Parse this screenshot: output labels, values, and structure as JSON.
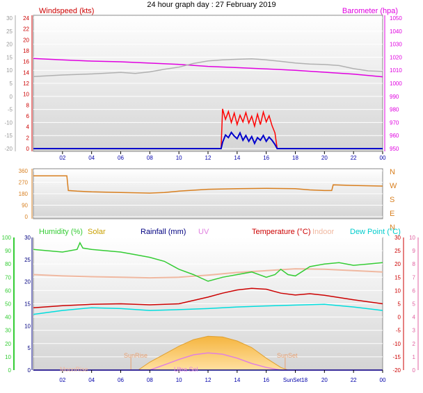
{
  "title": "24 hour graph day : 27 February 2019",
  "colors": {
    "wind": "#b0b0b0",
    "wind_speed": "#0000cc",
    "wind_gust": "#ff0000",
    "barometer": "#e000e0",
    "direction": "#d87f1f",
    "humidity": "#33cc33",
    "solar": "#c9a000",
    "rainfall": "#000080",
    "uv": "#e080e0",
    "temperature": "#cc0000",
    "indoor": "#f0b8a0",
    "dew_point": "#00dddd",
    "tick_x": "#0000aa"
  },
  "chart_data": [
    {
      "type": "line",
      "name": "wind-barometer",
      "labels": {
        "left": "Windspeed (kts)",
        "right": "Barometer (hpa)"
      },
      "x_ticks": [
        "02",
        "04",
        "06",
        "08",
        "10",
        "12",
        "14",
        "16",
        "18",
        "20",
        "22",
        "00"
      ],
      "left_outer_ticks": [
        30,
        25,
        20,
        15,
        10,
        5,
        0,
        -5,
        -10,
        -15,
        -20
      ],
      "left_inner_ticks": [
        24,
        22,
        20,
        18,
        16,
        14,
        12,
        10,
        8,
        6,
        4,
        2,
        0
      ],
      "right_ticks": [
        1050,
        1040,
        1030,
        1020,
        1010,
        1000,
        990,
        980,
        970,
        960,
        950
      ],
      "ylim_left": [
        0,
        25
      ],
      "ylim_right": [
        950,
        1050
      ],
      "series": [
        {
          "key": "barometer",
          "axis": "right",
          "points": [
            [
              0,
              1019
            ],
            [
              2,
              1018
            ],
            [
              4,
              1017
            ],
            [
              6,
              1016.5
            ],
            [
              8,
              1015.5
            ],
            [
              10,
              1014.5
            ],
            [
              12,
              1013
            ],
            [
              14,
              1012
            ],
            [
              16,
              1011
            ],
            [
              18,
              1010
            ],
            [
              20,
              1008.5
            ],
            [
              22,
              1007
            ],
            [
              24,
              1005
            ]
          ]
        },
        {
          "key": "wind",
          "axis": "left",
          "points": [
            [
              0,
              13.8
            ],
            [
              2,
              14.1
            ],
            [
              4,
              14.3
            ],
            [
              6,
              14.6
            ],
            [
              7,
              14.4
            ],
            [
              8,
              14.7
            ],
            [
              9,
              15.2
            ],
            [
              10,
              15.6
            ],
            [
              11,
              16.3
            ],
            [
              12,
              16.8
            ],
            [
              13,
              17.0
            ],
            [
              14,
              17.1
            ],
            [
              15,
              17.2
            ],
            [
              16,
              17.0
            ],
            [
              17,
              16.7
            ],
            [
              18,
              16.4
            ],
            [
              19,
              16.2
            ],
            [
              20,
              16.1
            ],
            [
              21,
              15.9
            ],
            [
              22,
              15.3
            ],
            [
              23,
              14.9
            ],
            [
              24,
              14.8
            ]
          ]
        },
        {
          "key": "wind_gust",
          "axis": "left",
          "points": [
            [
              0,
              0
            ],
            [
              12.9,
              0
            ],
            [
              13.0,
              7.6
            ],
            [
              13.2,
              5.6
            ],
            [
              13.4,
              7.1
            ],
            [
              13.6,
              5.0
            ],
            [
              13.8,
              6.8
            ],
            [
              14.0,
              4.6
            ],
            [
              14.2,
              6.4
            ],
            [
              14.4,
              5.1
            ],
            [
              14.6,
              6.9
            ],
            [
              14.8,
              4.9
            ],
            [
              15.0,
              6.2
            ],
            [
              15.2,
              4.3
            ],
            [
              15.4,
              6.6
            ],
            [
              15.6,
              4.6
            ],
            [
              15.8,
              7.0
            ],
            [
              16.0,
              5.1
            ],
            [
              16.2,
              6.3
            ],
            [
              16.4,
              4.4
            ],
            [
              16.6,
              3.0
            ],
            [
              16.75,
              0
            ],
            [
              24,
              0
            ]
          ]
        },
        {
          "key": "wind_speed",
          "axis": "left",
          "points": [
            [
              0,
              0
            ],
            [
              12.9,
              0
            ],
            [
              13.0,
              1.2
            ],
            [
              13.2,
              2.6
            ],
            [
              13.4,
              2.1
            ],
            [
              13.6,
              3.1
            ],
            [
              13.8,
              2.4
            ],
            [
              14.0,
              1.9
            ],
            [
              14.2,
              3.0
            ],
            [
              14.4,
              1.6
            ],
            [
              14.6,
              2.5
            ],
            [
              14.8,
              1.4
            ],
            [
              15.0,
              2.3
            ],
            [
              15.2,
              1.0
            ],
            [
              15.4,
              2.1
            ],
            [
              15.6,
              1.6
            ],
            [
              15.8,
              2.5
            ],
            [
              16.0,
              1.4
            ],
            [
              16.2,
              2.2
            ],
            [
              16.4,
              1.6
            ],
            [
              16.6,
              0.8
            ],
            [
              16.75,
              0
            ],
            [
              24,
              0
            ]
          ]
        }
      ]
    },
    {
      "type": "line",
      "name": "wind-direction",
      "y_ticks": [
        360,
        270,
        180,
        90,
        0
      ],
      "compass": [
        "N",
        "W",
        "S",
        "E",
        "N"
      ],
      "ylim": [
        0,
        360
      ],
      "series": [
        {
          "key": "direction",
          "points": [
            [
              0,
              320
            ],
            [
              2.3,
              320
            ],
            [
              2.4,
              205
            ],
            [
              3,
              200
            ],
            [
              4,
              195
            ],
            [
              6,
              190
            ],
            [
              8,
              185
            ],
            [
              9,
              190
            ],
            [
              10,
              200
            ],
            [
              12,
              215
            ],
            [
              14,
              220
            ],
            [
              16,
              222
            ],
            [
              18,
              220
            ],
            [
              19,
              210
            ],
            [
              20,
              205
            ],
            [
              20.5,
              205
            ],
            [
              20.6,
              250
            ],
            [
              22,
              245
            ],
            [
              24,
              240
            ]
          ]
        }
      ]
    },
    {
      "type": "line",
      "name": "weather-multi",
      "labels": {
        "humidity": "Humidity (%)",
        "solar": "Solar",
        "rainfall": "Rainfall (mm)",
        "uv": "UV",
        "temperature": "Temperature (°C)",
        "indoor": "Indoor",
        "dew_point": "Dew Point (°C)"
      },
      "x_ticks": [
        "02",
        "04",
        "06",
        "08",
        "10",
        "12",
        "14",
        "16",
        "SunSet18",
        "20",
        "22",
        "00"
      ],
      "humidity_ticks": [
        100,
        90,
        80,
        70,
        60,
        50,
        40,
        30,
        20,
        10,
        0
      ],
      "rain_ticks": [
        30,
        25,
        20,
        15,
        10,
        5,
        0
      ],
      "temp_ticks": [
        30,
        25,
        20,
        15,
        10,
        5,
        0,
        -5,
        -10,
        -15,
        -20
      ],
      "uv_ticks": [
        10,
        9,
        8,
        7,
        6,
        5,
        4,
        3,
        2,
        1,
        0
      ],
      "ylim_humidity": [
        0,
        100
      ],
      "ylim_temp": [
        -20,
        30
      ],
      "markers": {
        "moon": "MoonRise",
        "sunrise": "SunRise",
        "sunset": "SunSet",
        "uv_label": "Ultra Sol"
      },
      "series": [
        {
          "key": "humidity",
          "axis": "humidity",
          "points": [
            [
              0,
              91
            ],
            [
              1,
              90
            ],
            [
              2,
              89
            ],
            [
              3,
              91
            ],
            [
              3.2,
              96
            ],
            [
              3.4,
              92
            ],
            [
              4,
              91
            ],
            [
              6,
              89
            ],
            [
              7,
              87
            ],
            [
              8,
              85
            ],
            [
              9,
              82
            ],
            [
              10,
              76
            ],
            [
              11,
              72
            ],
            [
              12,
              67
            ],
            [
              13,
              70
            ],
            [
              14,
              72
            ],
            [
              15,
              74
            ],
            [
              16,
              70
            ],
            [
              16.6,
              72
            ],
            [
              17,
              76
            ],
            [
              17.5,
              72
            ],
            [
              18,
              71
            ],
            [
              19,
              78
            ],
            [
              20,
              80
            ],
            [
              21,
              81
            ],
            [
              22,
              79
            ],
            [
              23,
              80
            ],
            [
              24,
              81
            ]
          ]
        },
        {
          "key": "indoor",
          "axis": "temp",
          "points": [
            [
              0,
              16
            ],
            [
              2,
              15.5
            ],
            [
              4,
              15.2
            ],
            [
              6,
              15
            ],
            [
              8,
              14.8
            ],
            [
              10,
              15
            ],
            [
              12,
              15.8
            ],
            [
              14,
              16.8
            ],
            [
              16,
              17.5
            ],
            [
              18,
              18.2
            ],
            [
              20,
              18
            ],
            [
              22,
              17.5
            ],
            [
              24,
              17
            ]
          ]
        },
        {
          "key": "temperature",
          "axis": "temp",
          "points": [
            [
              0,
              3.5
            ],
            [
              2,
              4.3
            ],
            [
              4,
              4.8
            ],
            [
              6,
              5
            ],
            [
              8,
              4.6
            ],
            [
              10,
              5
            ],
            [
              12,
              7.5
            ],
            [
              13,
              9
            ],
            [
              14,
              10.2
            ],
            [
              15,
              10.8
            ],
            [
              16,
              10.5
            ],
            [
              17,
              9
            ],
            [
              18,
              8.3
            ],
            [
              19,
              8.8
            ],
            [
              20,
              8.2
            ],
            [
              22,
              6.5
            ],
            [
              24,
              5
            ]
          ]
        },
        {
          "key": "dew_point",
          "axis": "temp",
          "points": [
            [
              0,
              1
            ],
            [
              2,
              2.5
            ],
            [
              4,
              3.5
            ],
            [
              6,
              3.2
            ],
            [
              8,
              2.5
            ],
            [
              10,
              2.8
            ],
            [
              12,
              3.2
            ],
            [
              14,
              3.8
            ],
            [
              16,
              4.2
            ],
            [
              18,
              4.5
            ],
            [
              20,
              4.8
            ],
            [
              22,
              3.8
            ],
            [
              24,
              2.5
            ]
          ]
        },
        {
          "key": "solar",
          "axis": "humidity",
          "points": [
            [
              0,
              0
            ],
            [
              7.2,
              0
            ],
            [
              8,
              6
            ],
            [
              9,
              12
            ],
            [
              10,
              18
            ],
            [
              11,
              23
            ],
            [
              12,
              25.5
            ],
            [
              13,
              25
            ],
            [
              14,
              22
            ],
            [
              15,
              17
            ],
            [
              16,
              9
            ],
            [
              17,
              2
            ],
            [
              17.5,
              0
            ],
            [
              24,
              0
            ]
          ]
        },
        {
          "key": "uv",
          "axis": "humidity",
          "points": [
            [
              0,
              0
            ],
            [
              8,
              0
            ],
            [
              9,
              4
            ],
            [
              10,
              8
            ],
            [
              11,
              11.5
            ],
            [
              12,
              13
            ],
            [
              13,
              12
            ],
            [
              14,
              9
            ],
            [
              15,
              5
            ],
            [
              16,
              2
            ],
            [
              17,
              0
            ],
            [
              24,
              0
            ]
          ]
        },
        {
          "key": "rainfall",
          "axis": "humidity",
          "points": [
            [
              0,
              0
            ],
            [
              24,
              0
            ]
          ]
        }
      ]
    }
  ]
}
